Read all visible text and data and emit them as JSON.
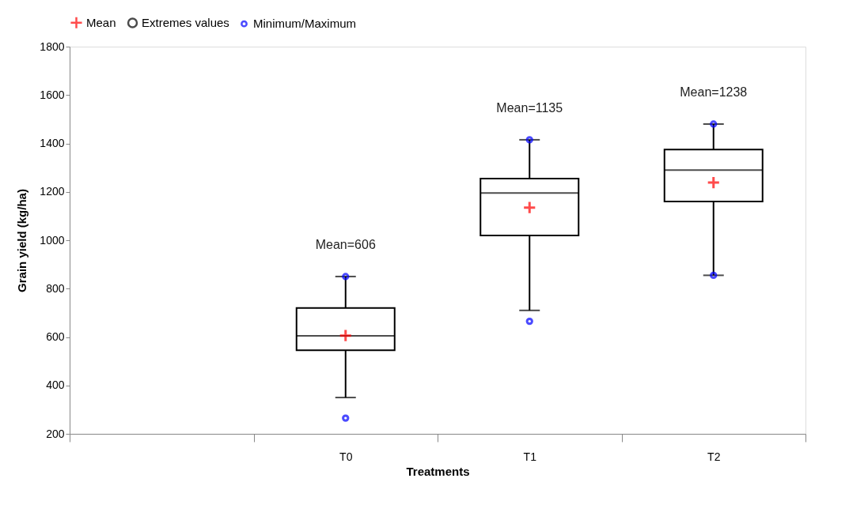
{
  "chart_data": {
    "type": "box",
    "xlabel": "Treatments",
    "ylabel": "Grain yield (kg/ha)",
    "categories": [
      null,
      "T0",
      "T1",
      "T2"
    ],
    "boxes": [
      null,
      {
        "low": 350,
        "q1": 545,
        "median": 605,
        "q3": 720,
        "high": 850
      },
      {
        "low": 710,
        "q1": 1020,
        "median": 1195,
        "q3": 1255,
        "high": 1415
      },
      {
        "low": 855,
        "q1": 1160,
        "median": 1290,
        "q3": 1375,
        "high": 1480
      }
    ],
    "series": [
      {
        "name": "Mean",
        "type": "scatter",
        "color": "#ff0000",
        "marker": "cross",
        "x": [
          "T0",
          "T1",
          "T2"
        ],
        "values": [
          606,
          1135,
          1238
        ]
      },
      {
        "name": "Extremes values",
        "type": "scatter",
        "color": "#000000",
        "marker": "circle",
        "x": [
          "T0",
          "T1",
          "T2"
        ],
        "values": [
          null,
          null,
          null
        ]
      },
      {
        "name": "Minimum/Maximum",
        "type": "scatter",
        "color": "#0000ff",
        "marker": "circle",
        "x": [
          "T0",
          "T0",
          "T1",
          "T1",
          "T2",
          "T2"
        ],
        "values": [
          265,
          850,
          665,
          1415,
          855,
          1480
        ]
      }
    ],
    "annotations": [
      "Mean=606",
      "Mean=1135",
      "Mean=1238"
    ],
    "ylim": [
      200,
      1800
    ],
    "yticks": [
      200,
      400,
      600,
      800,
      1000,
      1200,
      1400,
      1600,
      1800
    ],
    "grid": false,
    "legend": "top"
  }
}
